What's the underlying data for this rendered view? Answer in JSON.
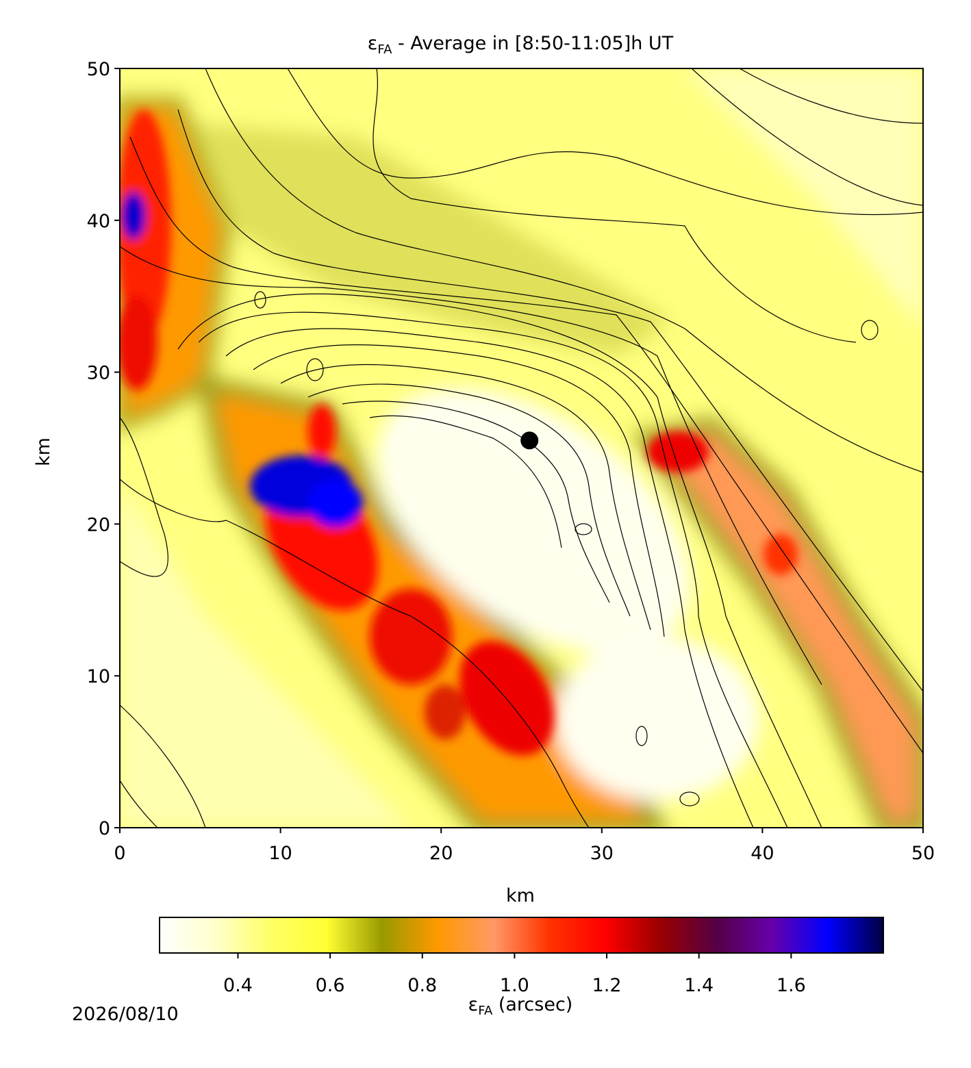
{
  "chart_data": {
    "type": "heatmap",
    "title": {
      "symbol": "ε",
      "sub": "FA",
      "rest": " - Average in [8:50-11:05]h UT"
    },
    "xlabel": "km",
    "ylabel": "km",
    "xlim": [
      0,
      50
    ],
    "ylim": [
      0,
      50
    ],
    "xticks": [
      0,
      10,
      20,
      30,
      40,
      50
    ],
    "yticks": [
      0,
      10,
      20,
      30,
      40,
      50
    ],
    "marker": {
      "x": 25.5,
      "y": 25.5,
      "color": "#000000"
    },
    "colorbar": {
      "label": {
        "symbol": "ε",
        "sub": "FA",
        "rest": " (arcsec)"
      },
      "clim": [
        0.23,
        1.8
      ],
      "ticks": [
        0.4,
        0.6,
        0.8,
        {
          "value": 1,
          "label": "1.0"
        },
        1.2,
        1.4,
        1.6
      ],
      "colors": [
        "#ffffff",
        "#ffffcc",
        "#ffff66",
        "#ffff33",
        "#999900",
        "#ff9900",
        "#ff9966",
        "#ff3300",
        "#ff0000",
        "#990000",
        "#550044",
        "#6600aa",
        "#0000ff",
        "#000044"
      ]
    },
    "date": "2026/08/10"
  }
}
